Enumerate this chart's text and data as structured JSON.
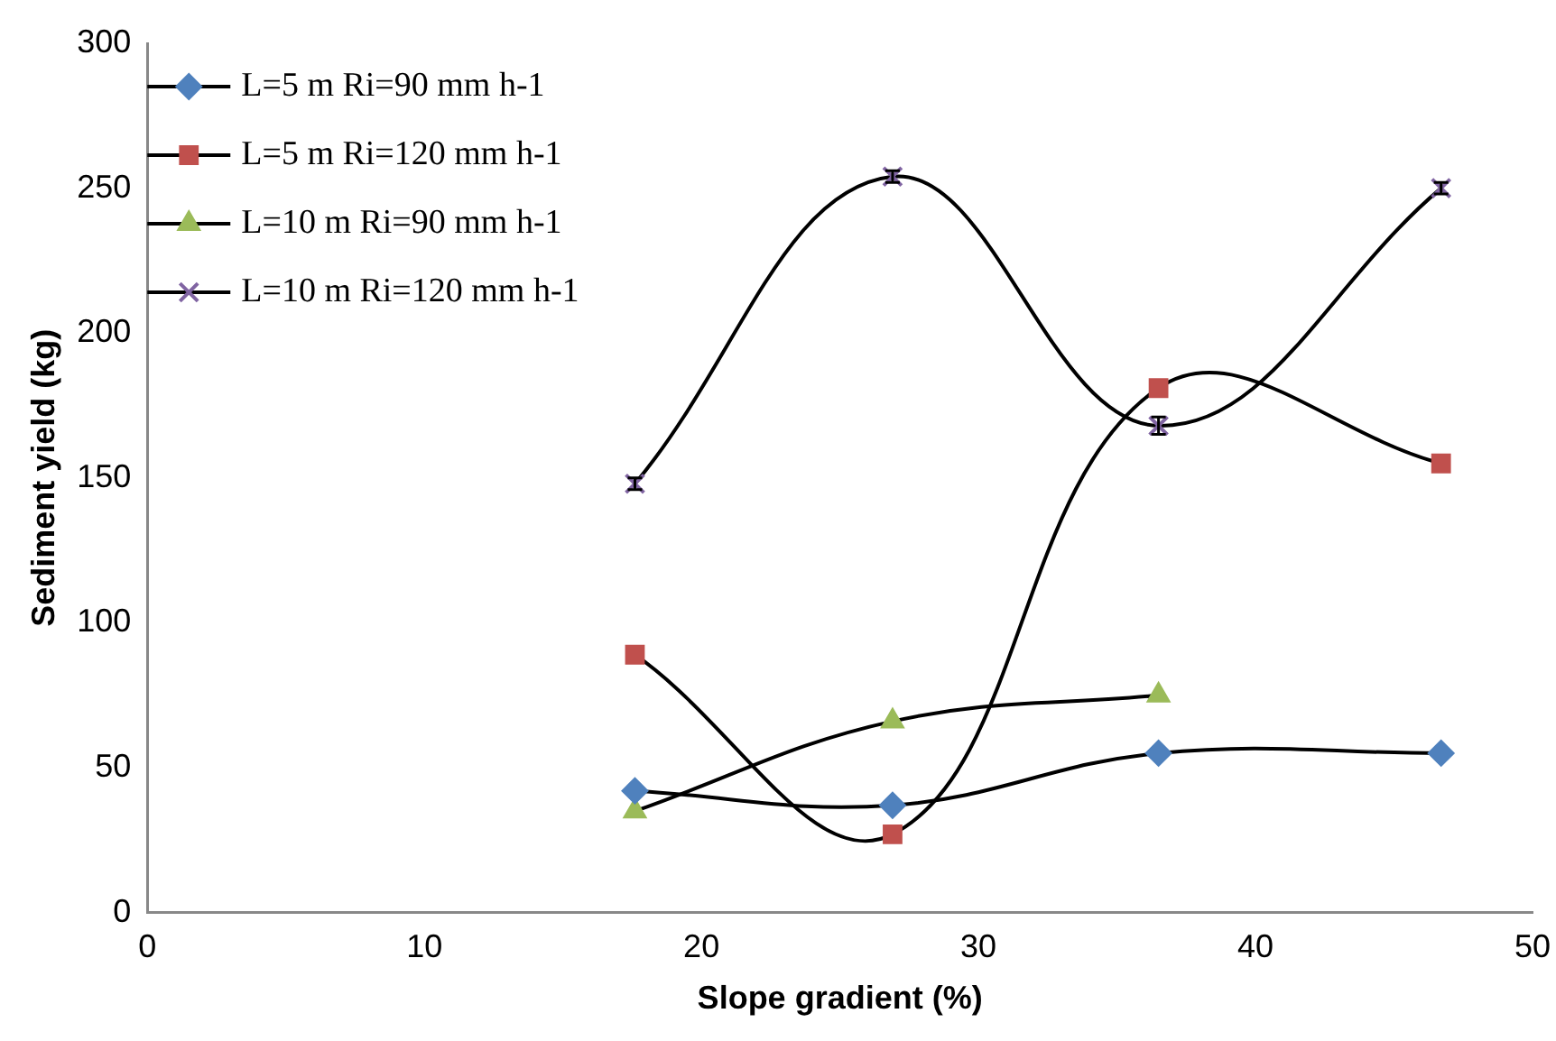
{
  "chart_data": {
    "type": "line",
    "xlabel": "Slope gradient (%)",
    "ylabel": "Sediment yield (kg)",
    "x": [
      17.6,
      26.9,
      36.5,
      46.7
    ],
    "series": [
      {
        "name": "L=5 m Ri=90 mm h-1",
        "color": "#4f81bd",
        "marker": "diamond",
        "values": [
          42,
          37,
          55,
          55
        ]
      },
      {
        "name": "L=5 m Ri=120 mm h-1",
        "color": "#c0504d",
        "marker": "square",
        "values": [
          89,
          27,
          181,
          155
        ]
      },
      {
        "name": "L=10 m Ri=90 mm h-1",
        "color": "#9bbb59",
        "marker": "triangle",
        "values": [
          35,
          66,
          75,
          null
        ]
      },
      {
        "name": "L=10 m Ri=120 mm h-1",
        "color": "#8064a2",
        "marker": "cross",
        "values": [
          148,
          254,
          168,
          250
        ],
        "errors": [
          2,
          2,
          3,
          2
        ]
      }
    ],
    "xlim": [
      0,
      50
    ],
    "xticks": [
      0,
      10,
      20,
      30,
      40,
      50
    ],
    "ylim": [
      0,
      300
    ],
    "yticks": [
      0,
      50,
      100,
      150,
      200,
      250,
      300
    ],
    "grid": false,
    "legend": "top left"
  }
}
